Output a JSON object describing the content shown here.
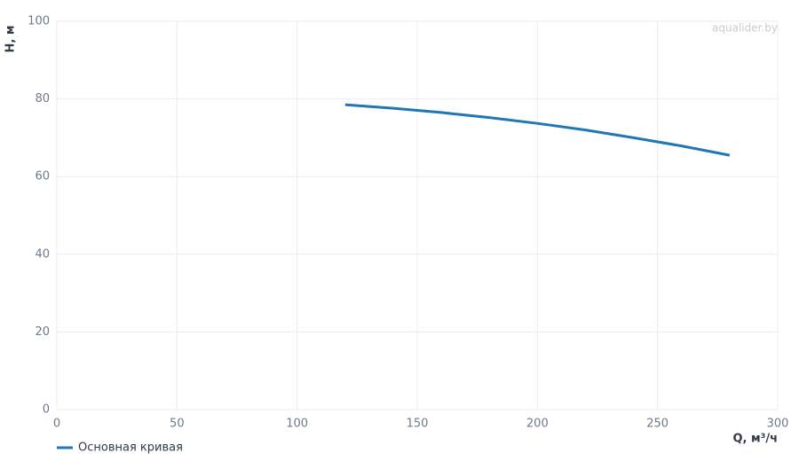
{
  "chart_data": {
    "type": "line",
    "watermark": "aqualider.by",
    "x_label": "Q, м³/ч",
    "y_label": "H, м",
    "x": [
      120,
      140,
      160,
      180,
      200,
      220,
      240,
      260,
      280
    ],
    "series": [
      {
        "name": "Основная кривая",
        "color": "#1f77b4",
        "values": [
          78.5,
          77.6,
          76.5,
          75.2,
          73.7,
          72.0,
          70.0,
          67.9,
          65.5
        ]
      }
    ],
    "xlim": [
      0,
      300
    ],
    "xticks": [
      0,
      50,
      100,
      150,
      200,
      250,
      300
    ],
    "ylim": [
      0,
      100
    ],
    "yticks": [
      0,
      20,
      40,
      60,
      80,
      100
    ],
    "grid": true,
    "legend": "bottom-left"
  }
}
